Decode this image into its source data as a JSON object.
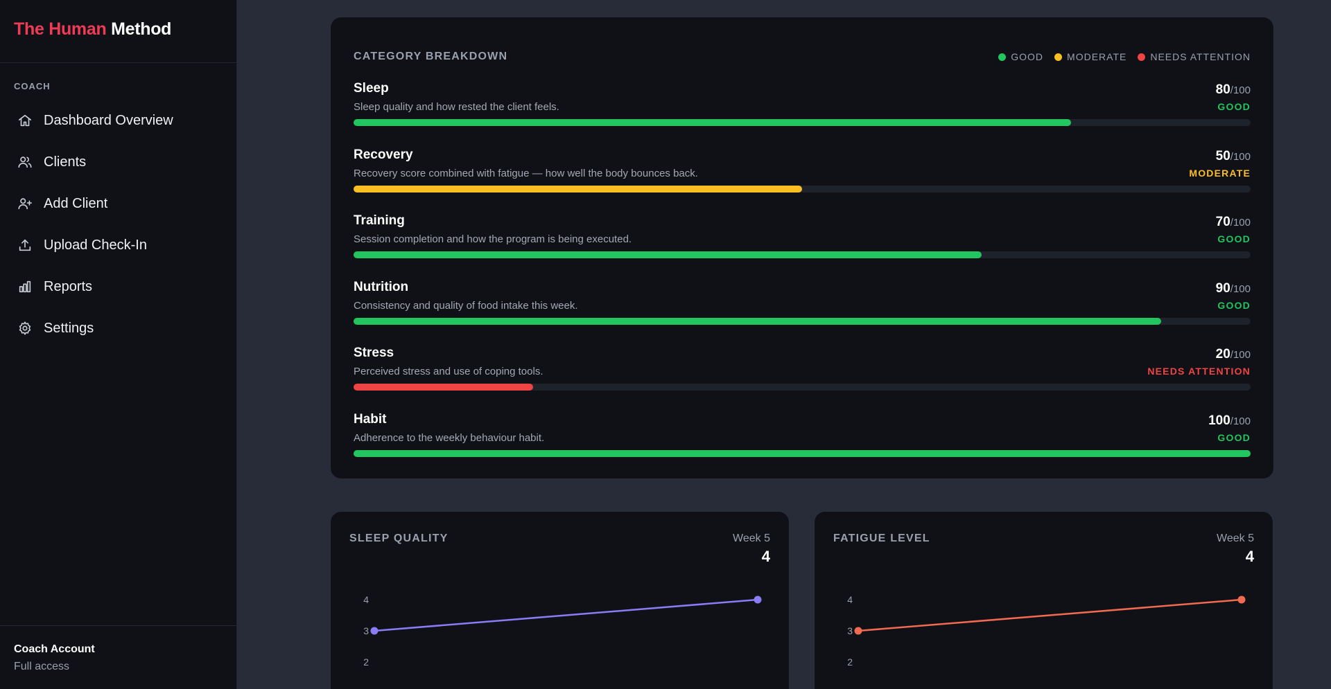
{
  "brand": {
    "accent": "The Human",
    "rest": "Method"
  },
  "sidebar": {
    "section_label": "COACH",
    "items": [
      {
        "label": "Dashboard Overview",
        "icon": "home-icon"
      },
      {
        "label": "Clients",
        "icon": "users-icon"
      },
      {
        "label": "Add Client",
        "icon": "user-plus-icon"
      },
      {
        "label": "Upload Check-In",
        "icon": "upload-icon"
      },
      {
        "label": "Reports",
        "icon": "bar-chart-icon"
      },
      {
        "label": "Settings",
        "icon": "gear-icon"
      }
    ],
    "account": {
      "name": "Coach Account",
      "access": "Full access"
    }
  },
  "breakdown": {
    "title": "CATEGORY BREAKDOWN",
    "legend": [
      {
        "label": "GOOD",
        "color": "#22c55e"
      },
      {
        "label": "MODERATE",
        "color": "#fbbf24"
      },
      {
        "label": "NEEDS ATTENTION",
        "color": "#ef4444"
      }
    ],
    "max_suffix": "/100",
    "categories": [
      {
        "name": "Sleep",
        "desc": "Sleep quality and how rested the client feels.",
        "score": "80",
        "status": "GOOD",
        "color": "#22c55e"
      },
      {
        "name": "Recovery",
        "desc": "Recovery score combined with fatigue — how well the body bounces back.",
        "score": "50",
        "status": "MODERATE",
        "color": "#fbbf24"
      },
      {
        "name": "Training",
        "desc": "Session completion and how the program is being executed.",
        "score": "70",
        "status": "GOOD",
        "color": "#22c55e"
      },
      {
        "name": "Nutrition",
        "desc": "Consistency and quality of food intake this week.",
        "score": "90",
        "status": "GOOD",
        "color": "#22c55e"
      },
      {
        "name": "Stress",
        "desc": "Perceived stress and use of coping tools.",
        "score": "20",
        "status": "NEEDS ATTENTION",
        "color": "#ef4444"
      },
      {
        "name": "Habit",
        "desc": "Adherence to the weekly behaviour habit.",
        "score": "100",
        "status": "GOOD",
        "color": "#22c55e"
      }
    ]
  },
  "chart_data": [
    {
      "type": "line",
      "title": "SLEEP QUALITY",
      "week_label": "Week 5",
      "current_value": "4",
      "color": "#8b7cf6",
      "y_ticks": [
        "4",
        "3",
        "2"
      ],
      "ylim": [
        1,
        4
      ],
      "values": [
        3,
        4
      ]
    },
    {
      "type": "line",
      "title": "FATIGUE LEVEL",
      "week_label": "Week 5",
      "current_value": "4",
      "color": "#f26a4f",
      "y_ticks": [
        "4",
        "3",
        "2"
      ],
      "ylim": [
        1,
        4
      ],
      "values": [
        3,
        4
      ]
    }
  ]
}
